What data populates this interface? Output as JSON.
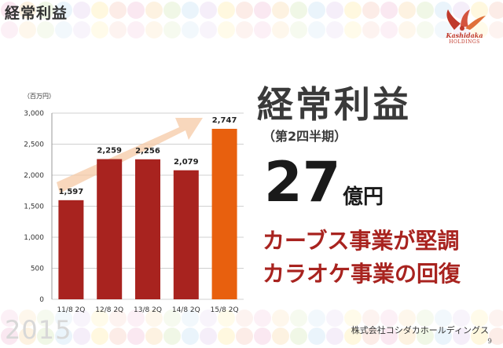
{
  "header": {
    "title": "経常利益"
  },
  "logo": {
    "brand": "Kashidaka",
    "sub": "HOLDINGS"
  },
  "chart_data": {
    "type": "bar",
    "unit_label": "（百万円）",
    "categories": [
      "11/8 2Q",
      "12/8 2Q",
      "13/8 2Q",
      "14/8 2Q",
      "15/8 2Q"
    ],
    "values": [
      1597,
      2259,
      2256,
      2079,
      2747
    ],
    "value_labels": [
      "1,597",
      "2,259",
      "2,256",
      "2,079",
      "2,747"
    ],
    "yticks": [
      "0",
      "500",
      "1,000",
      "1,500",
      "2,000",
      "2,500",
      "3,000"
    ],
    "ylim": [
      0,
      3000
    ],
    "grid": true,
    "colors": {
      "bar": "#a8231f",
      "highlight": "#e8600e",
      "arrow": "#f5c9a6"
    }
  },
  "headline": {
    "title": "経常利益",
    "subtitle": "（第2四半期）",
    "number": "27",
    "unit": "億円",
    "line1": "カーブス事業が堅調",
    "line2": "カラオケ事業の回復"
  },
  "footer": {
    "year": "2015",
    "company": "株式会社コシダカホールディングス",
    "page": "9"
  }
}
